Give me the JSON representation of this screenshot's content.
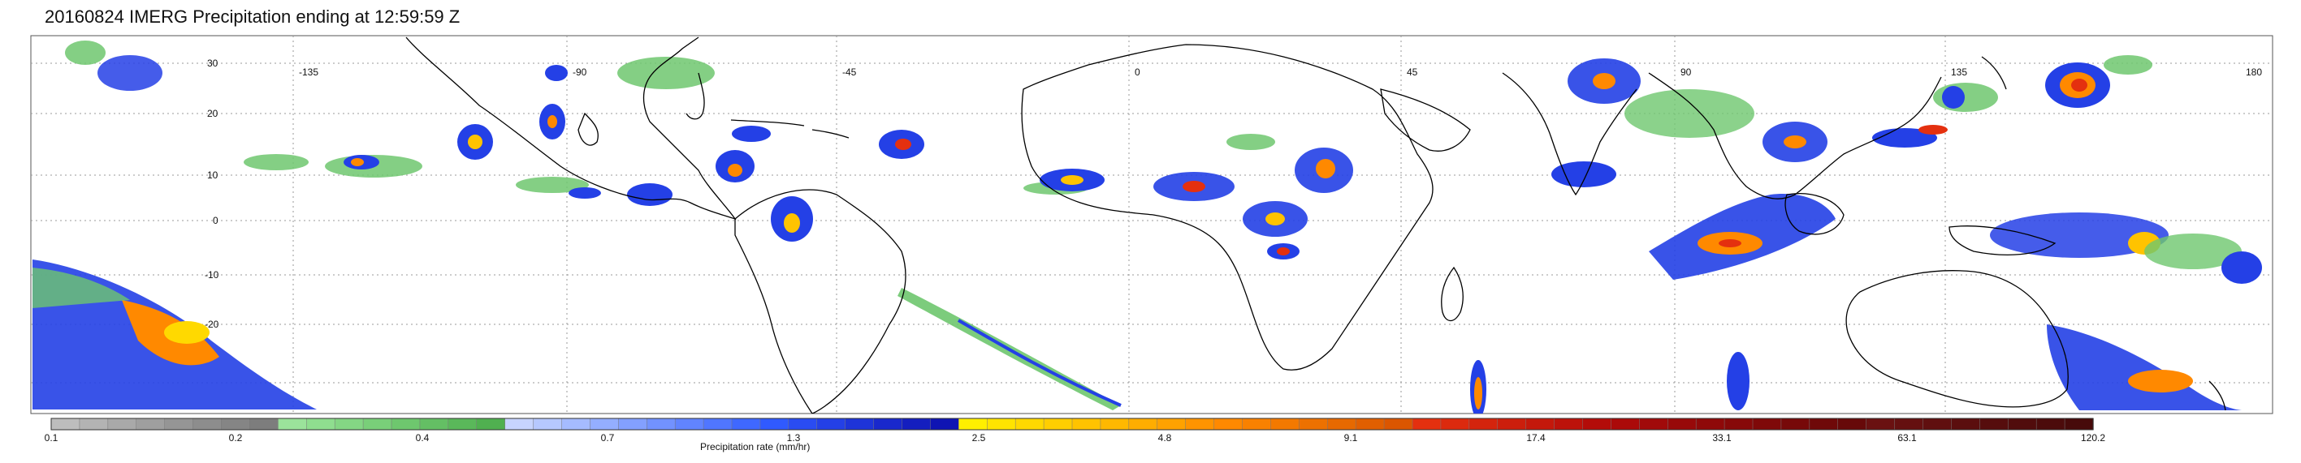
{
  "title": "20160824 IMERG Precipitation ending at 12:59:59 Z",
  "map": {
    "projection": "equirectangular",
    "lon_labels": [
      "-135",
      "-90",
      "-45",
      "0",
      "45",
      "90",
      "135",
      "180"
    ],
    "lat_labels": [
      "30",
      "20",
      "10",
      "0",
      "-10",
      "-20"
    ],
    "gridlines": "dotted"
  },
  "colorbar": {
    "label": "Precipitation rate (mm/hr)",
    "ticks": [
      "0.1",
      "0.2",
      "0.4",
      "0.7",
      "1.3",
      "2.5",
      "4.8",
      "9.1",
      "17.4",
      "33.1",
      "63.1",
      "120.2"
    ],
    "colors": [
      "#bdbdbd",
      "#b3b3b3",
      "#a9a9a9",
      "#9f9f9f",
      "#959595",
      "#8d8d8d",
      "#858585",
      "#7d7d7d",
      "#9be39b",
      "#8fde8f",
      "#84d684",
      "#79cf79",
      "#6ec76e",
      "#64bf64",
      "#5ab85a",
      "#50b050",
      "#c7d4ff",
      "#b6c8ff",
      "#a5bbff",
      "#94aeff",
      "#83a0ff",
      "#7292ff",
      "#6184ff",
      "#5076ff",
      "#3f68ff",
      "#305aff",
      "#2a4cf2",
      "#2440e6",
      "#1e34d9",
      "#1928cc",
      "#141ebf",
      "#0f14b3",
      "#ffef00",
      "#ffe400",
      "#ffd900",
      "#ffce00",
      "#ffc300",
      "#ffb800",
      "#ffad00",
      "#ffa200",
      "#ff9400",
      "#ff8900",
      "#f98100",
      "#f37900",
      "#ed7100",
      "#e76900",
      "#e15f00",
      "#db5600",
      "#e4300f",
      "#dc2a0e",
      "#d4240d",
      "#cc1e0c",
      "#c4180b",
      "#bc120a",
      "#b30c09",
      "#ab0a09",
      "#a10a0a",
      "#980909",
      "#8f0909",
      "#870909",
      "#7f0909",
      "#770909",
      "#6f0909",
      "#670909",
      "#6a1111",
      "#651010",
      "#600f0f",
      "#5b0e0e",
      "#560d0d",
      "#510c0c",
      "#4c0b0b",
      "#470a0a"
    ]
  },
  "legend_colors": {
    "coast": "#000000",
    "grid": "#999999",
    "light_rain": "#6ec76e",
    "moderate_rain": "#2440e6",
    "heavy_rain": "#ffc300",
    "intense_rain": "#e15f00",
    "extreme_rain": "#8f0909"
  }
}
